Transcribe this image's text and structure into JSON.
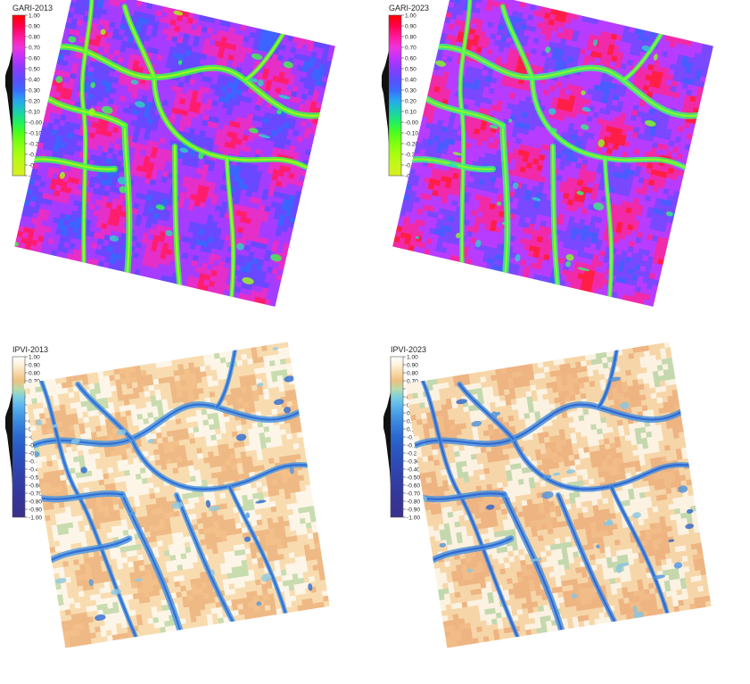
{
  "panels": [
    {
      "id": "gari-2013",
      "title": "GARI-2013",
      "ticks": [
        "1.00",
        "0.90",
        "0.80",
        "0.70",
        "0.60",
        "0.50",
        "0.40",
        "0.30",
        "0.20",
        "0.10",
        "-0.00",
        "-0.10",
        "-0.20",
        "-0.30",
        "-0.40",
        "-0.50"
      ],
      "ramp": [
        "#ff0000",
        "#ff004a",
        "#ff1a9a",
        "#ee33dd",
        "#c033ff",
        "#8a3bff",
        "#5c4dff",
        "#3a6aff",
        "#27a8f0",
        "#1ad0b0",
        "#20f060",
        "#4cff1a",
        "#80ff10",
        "#a8ff10",
        "#c6f51a",
        "#d8f020"
      ],
      "palette": [
        "#ff1e6e",
        "#e62ec8",
        "#a63cff",
        "#6a48ff",
        "#3d64ff",
        "#2bd7c0",
        "#3cfb4a",
        "#a4ff12"
      ]
    },
    {
      "id": "gari-2023",
      "title": "GARI-2023",
      "ticks": [
        "1.00",
        "0.90",
        "0.80",
        "0.70",
        "0.60",
        "0.50",
        "0.40",
        "0.30",
        "0.20",
        "0.10",
        "-0.00",
        "-0.10",
        "-0.20",
        "-0.30",
        "-0.40",
        "-0.50"
      ],
      "ramp": [
        "#ff0000",
        "#ff004a",
        "#ff1a9a",
        "#ee33dd",
        "#c033ff",
        "#8a3bff",
        "#5c4dff",
        "#3a6aff",
        "#27a8f0",
        "#1ad0b0",
        "#20f060",
        "#4cff1a",
        "#80ff10",
        "#a8ff10",
        "#c6f51a",
        "#d8f020"
      ],
      "palette": [
        "#ff1e46",
        "#f02aa8",
        "#b83cff",
        "#7a48ff",
        "#4a5cff",
        "#2fcfd0",
        "#38f47a",
        "#8cff1a"
      ]
    },
    {
      "id": "ipvi-2013",
      "title": "IPVI-2013",
      "ticks": [
        "1.00",
        "0.90",
        "0.80",
        "0.70",
        "0.60",
        "0.50",
        "0.40",
        "0.30",
        "0.20",
        "0.10",
        "-0.00",
        "-0.10",
        "-0.20",
        "-0.30",
        "-0.40",
        "-0.50",
        "-0.60",
        "-0.70",
        "-0.80",
        "-0.90",
        "-1.00"
      ],
      "ramp": [
        "#ffffff",
        "#fdf2dc",
        "#f8d8a8",
        "#f0c080",
        "#b8dca8",
        "#7fd0e0",
        "#60b8ec",
        "#4aa0e8",
        "#3c8ae0",
        "#3278d8",
        "#2a68d0",
        "#2a5ec8",
        "#2a55c0",
        "#2c4db8",
        "#2e46b0",
        "#3040a8",
        "#323ca2",
        "#34389c",
        "#363596",
        "#383290",
        "#3a308a"
      ],
      "palette": [
        "#f4c08a",
        "#efb985",
        "#f8dcb0",
        "#fdf6e8",
        "#c8dcb0",
        "#8ccbe6",
        "#4f98e0",
        "#2c6ad4"
      ]
    },
    {
      "id": "ipvi-2023",
      "title": "IPVI-2023",
      "ticks": [
        "1.00",
        "0.90",
        "0.80",
        "0.70",
        "0.60",
        "0.50",
        "0.40",
        "0.30",
        "0.20",
        "0.10",
        "-0.00",
        "-0.10",
        "-0.20",
        "-0.30",
        "-0.40",
        "-0.50",
        "-0.60",
        "-0.70",
        "-0.80",
        "-0.90",
        "-1.00"
      ],
      "ramp": [
        "#ffffff",
        "#fdf2dc",
        "#f8d8a8",
        "#f0c080",
        "#b8dca8",
        "#7fd0e0",
        "#60b8ec",
        "#4aa0e8",
        "#3c8ae0",
        "#3278d8",
        "#2a68d0",
        "#2a5ec8",
        "#2a55c0",
        "#2c4db8",
        "#2e46b0",
        "#3040a8",
        "#323ca2",
        "#34389c",
        "#363596",
        "#383290",
        "#3a308a"
      ],
      "palette": [
        "#f2bc88",
        "#eeb482",
        "#f6d6a8",
        "#fcf2e2",
        "#c4d8ae",
        "#86c6e4",
        "#4c92de",
        "#2b64d0"
      ]
    }
  ]
}
